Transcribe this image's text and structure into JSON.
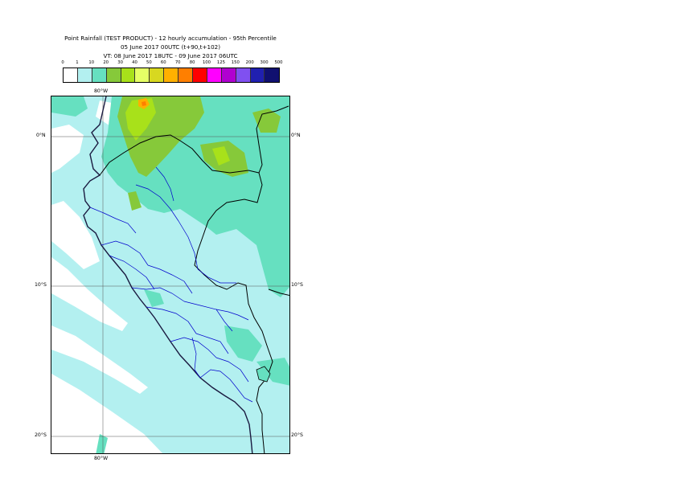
{
  "header": {
    "title_line1": "Point Rainfall (TEST PRODUCT) - 12 hourly accumulation - 95th Percentile",
    "title_line2": "05 June 2017 00UTC (t+90,t+102)",
    "title_line3": "VT: 08 June 2017 18UTC - 09 June 2017 06UTC"
  },
  "legend": {
    "thresholds": [
      "0",
      "1",
      "10",
      "20",
      "30",
      "40",
      "50",
      "60",
      "70",
      "80",
      "100",
      "125",
      "150",
      "200",
      "300",
      "500"
    ],
    "colors": [
      "#ffffff",
      "#b3f0f0",
      "#66e0c0",
      "#86c93a",
      "#a8e11a",
      "#e6ff66",
      "#d8d820",
      "#ffb000",
      "#ff7f00",
      "#ff0000",
      "#ff00ff",
      "#b000d0",
      "#8050f0",
      "#2020b0",
      "#101070"
    ]
  },
  "map": {
    "lat_labels": [
      "0°N",
      "10°S",
      "20°S"
    ],
    "lon_labels": [
      "80°W",
      "80°W"
    ],
    "colors": {
      "sea": "#ffffff",
      "light_rain": "#b3f0f0",
      "moderate_rain": "#66e0c0",
      "heavy_rain": "#86c93a",
      "very_heavy": "#a8e11a",
      "peak": "#ffb000",
      "coast": "#1a1a40",
      "border": "#0000cc",
      "grid": "#555555"
    }
  }
}
